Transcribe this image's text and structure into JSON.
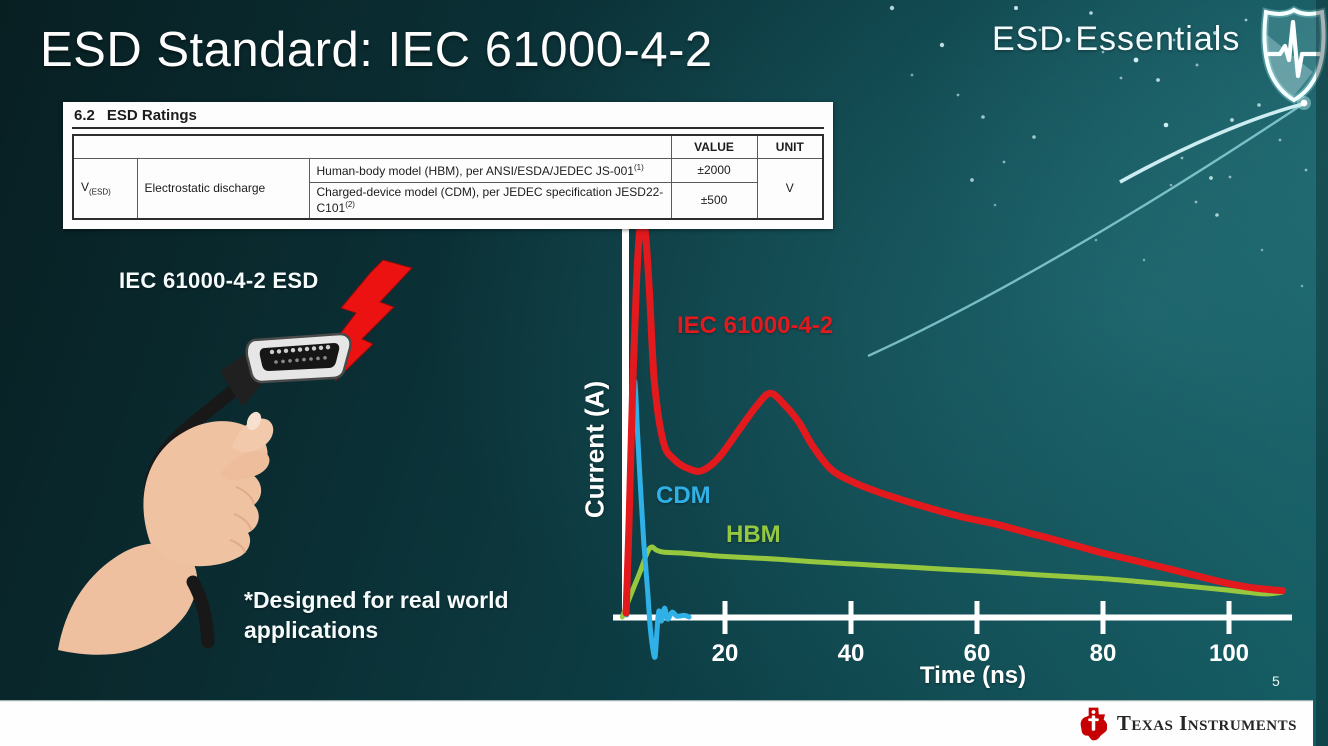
{
  "slide": {
    "title": "ESD Standard: IEC 61000-4-2",
    "brand": "ESD Essentials",
    "page_number": "5",
    "footer_brand": "Texas Instruments"
  },
  "ratings_table": {
    "section_number": "6.2",
    "section_title": "ESD Ratings",
    "value_header": "VALUE",
    "unit_header": "UNIT",
    "param_symbol": "V",
    "param_subscript": "(ESD)",
    "param_name": "Electrostatic discharge",
    "rows": [
      {
        "model": "Human-body model (HBM), per ANSI/ESDA/JEDEC JS-001",
        "footnote": "(1)",
        "value": "±2000"
      },
      {
        "model": "Charged-device model (CDM), per JEDEC specification JESD22-C101",
        "footnote": "(2)",
        "value": "±500"
      }
    ],
    "unit": "V"
  },
  "illustration": {
    "caption": "IEC 61000-4-2 ESD",
    "note": "*Designed for real world\napplications"
  },
  "chart_data": {
    "type": "line",
    "title": "",
    "xlabel": "Time (ns)",
    "ylabel": "Current (A)",
    "xlim": [
      0,
      110
    ],
    "x_ticks": [
      20,
      40,
      60,
      80,
      100
    ],
    "grid": false,
    "legend": "inline colored curve labels",
    "y_axis_note": "no numeric ticks (relative current)",
    "series": [
      {
        "name": "IEC 61000-4-2",
        "color": "#e2191d",
        "points": [
          [
            4.3,
            0.01
          ],
          [
            4.8,
            0.25
          ],
          [
            5.3,
            0.55
          ],
          [
            5.9,
            0.82
          ],
          [
            6.4,
            0.96
          ],
          [
            6.9,
            1.0
          ],
          [
            7.4,
            0.96
          ],
          [
            8.0,
            0.82
          ],
          [
            8.8,
            0.59
          ],
          [
            10.2,
            0.44
          ],
          [
            12,
            0.395
          ],
          [
            14.3,
            0.372
          ],
          [
            16.4,
            0.368
          ],
          [
            19,
            0.4
          ],
          [
            22,
            0.465
          ],
          [
            25,
            0.53
          ],
          [
            27.2,
            0.562
          ],
          [
            29.5,
            0.532
          ],
          [
            31.7,
            0.49
          ],
          [
            34,
            0.428
          ],
          [
            36.9,
            0.37
          ],
          [
            40.5,
            0.338
          ],
          [
            44.3,
            0.314
          ],
          [
            49,
            0.29
          ],
          [
            53.7,
            0.268
          ],
          [
            58,
            0.25
          ],
          [
            63.1,
            0.233
          ],
          [
            68,
            0.212
          ],
          [
            72.6,
            0.193
          ],
          [
            79.4,
            0.163
          ],
          [
            85,
            0.142
          ],
          [
            89.9,
            0.123
          ],
          [
            95,
            0.103
          ],
          [
            99.4,
            0.086
          ],
          [
            103,
            0.075
          ],
          [
            105.7,
            0.07
          ],
          [
            108.5,
            0.066
          ]
        ]
      },
      {
        "name": "CDM",
        "color": "#2fb0e6",
        "points": [
          [
            4.4,
            0.005
          ],
          [
            4.7,
            0.22
          ],
          [
            5.0,
            0.42
          ],
          [
            5.35,
            0.55
          ],
          [
            5.7,
            0.59
          ],
          [
            6.1,
            0.47
          ],
          [
            6.6,
            0.32
          ],
          [
            7.1,
            0.19
          ],
          [
            7.7,
            0.07
          ],
          [
            8.1,
            -0.02
          ],
          [
            8.5,
            -0.075
          ],
          [
            8.9,
            -0.1
          ],
          [
            9.2,
            -0.035
          ],
          [
            9.5,
            0.015
          ],
          [
            9.9,
            -0.01
          ],
          [
            10.4,
            0.022
          ],
          [
            10.9,
            -0.005
          ],
          [
            11.6,
            0.012
          ],
          [
            12.4,
            0.002
          ],
          [
            13.5,
            0.004
          ],
          [
            14.3,
            0.0
          ]
        ]
      },
      {
        "name": "HBM",
        "color": "#95c83e",
        "points": [
          [
            3.7,
            0.0
          ],
          [
            4.9,
            0.05
          ],
          [
            6.5,
            0.113
          ],
          [
            7.7,
            0.163
          ],
          [
            8.4,
            0.176
          ],
          [
            9.1,
            0.168
          ],
          [
            10.2,
            0.163
          ],
          [
            12.8,
            0.161
          ],
          [
            16,
            0.157
          ],
          [
            19,
            0.153
          ],
          [
            24,
            0.149
          ],
          [
            28.5,
            0.145
          ],
          [
            34,
            0.139
          ],
          [
            39.5,
            0.134
          ],
          [
            45,
            0.129
          ],
          [
            50.6,
            0.124
          ],
          [
            56,
            0.119
          ],
          [
            63.1,
            0.113
          ],
          [
            69.4,
            0.106
          ],
          [
            75,
            0.101
          ],
          [
            79.4,
            0.097
          ],
          [
            85,
            0.09
          ],
          [
            89.9,
            0.083
          ],
          [
            95,
            0.075
          ],
          [
            99.4,
            0.068
          ],
          [
            103,
            0.062
          ],
          [
            106,
            0.058
          ],
          [
            108.4,
            0.062
          ]
        ]
      }
    ]
  }
}
